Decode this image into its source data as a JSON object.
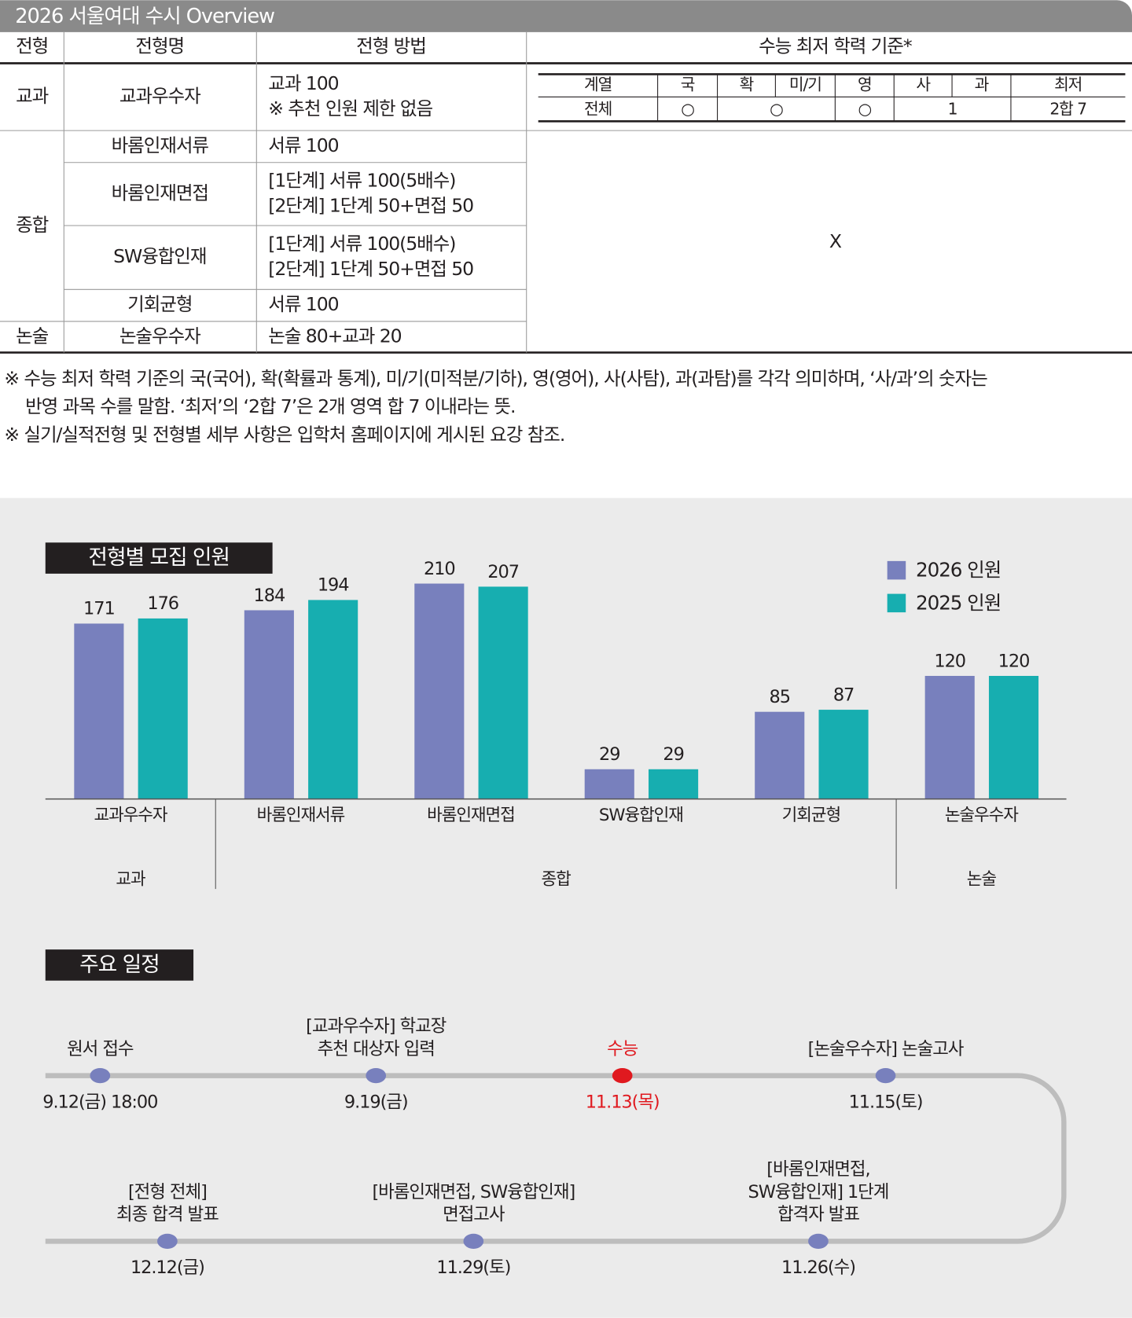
{
  "header": {
    "title": "2026 서울여대 수시 Overview"
  },
  "table": {
    "headers": [
      "전형",
      "전형명",
      "전형 방법",
      "수능 최저 학력 기준*"
    ],
    "groups": [
      {
        "name": "교과",
        "rows": [
          {
            "name": "교과우수자",
            "method": [
              "교과 100",
              "※ 추천 인원 제한 없음"
            ]
          }
        ]
      },
      {
        "name": "종합",
        "rows": [
          {
            "name": "바롬인재서류",
            "method": [
              "서류 100"
            ]
          },
          {
            "name": "바롬인재면접",
            "method": [
              "[1단계] 서류 100(5배수)",
              "[2단계] 1단계 50+면접 50"
            ]
          },
          {
            "name": "SW융합인재",
            "method": [
              "[1단계] 서류 100(5배수)",
              "[2단계] 1단계 50+면접 50"
            ]
          },
          {
            "name": "기회균형",
            "method": [
              "서류 100"
            ]
          }
        ]
      },
      {
        "name": "논술",
        "rows": [
          {
            "name": "논술우수자",
            "method": [
              "논술 80+교과 20"
            ]
          }
        ]
      }
    ],
    "criteria": {
      "headers": [
        "계열",
        "국",
        "확",
        "미/기",
        "영",
        "사",
        "과",
        "최저"
      ],
      "row": [
        "전체",
        "○",
        "○",
        "○",
        "1",
        "2합 7"
      ]
    },
    "no_criteria": "X"
  },
  "notes": [
    [
      "※ 수능 최저 학력 기준의 국(국어), 확(확률과 통계), 미/기(미적분/기하), 영(영어), 사(사탐), 과(과탐)를 각각 의미하며, ‘사/과’의 숫자는",
      "반영 과목 수를 말함. ‘최저’의 ‘2합 7’은 2개 영역 합 7 이내라는 뜻."
    ],
    [
      "※ 실기/실적전형 및 전형별 세부 사항은 입학처 홈페이지에 게시된 요강 참조."
    ]
  ],
  "chart_data": {
    "type": "bar",
    "title": "전형별 모집 인원",
    "categories": [
      "교과우수자",
      "바롬인재서류",
      "바롬인재면접",
      "SW융합인재",
      "기회균형",
      "논술우수자"
    ],
    "groups": [
      {
        "name": "교과",
        "count": 1
      },
      {
        "name": "종합",
        "count": 4
      },
      {
        "name": "논술",
        "count": 1
      }
    ],
    "series": [
      {
        "name": "2026 인원",
        "color": "#7880bd",
        "values": [
          171,
          184,
          210,
          29,
          85,
          120
        ]
      },
      {
        "name": "2025 인원",
        "color": "#17aeb0",
        "values": [
          176,
          194,
          207,
          29,
          87,
          120
        ]
      }
    ],
    "ylim": [
      0,
      250
    ],
    "legend": "top-right"
  },
  "schedule": {
    "title": "주요 일정",
    "highlight_color": "#e0191f",
    "events": [
      {
        "label": [
          "원서 접수"
        ],
        "date": "9.12(금) 18:00"
      },
      {
        "label": [
          "[교과우수자] 학교장",
          "추천 대상자 입력"
        ],
        "date": "9.19(금)"
      },
      {
        "label": [
          "수능"
        ],
        "date": "11.13(목)",
        "highlight": true
      },
      {
        "label": [
          "[논술우수자] 논술고사"
        ],
        "date": "11.15(토)"
      },
      {
        "label": [
          "[바롬인재면접,",
          "SW융합인재] 1단계",
          "합격자 발표"
        ],
        "date": "11.26(수)"
      },
      {
        "label": [
          "[바롬인재면접, SW융합인재]",
          "면접고사"
        ],
        "date": "11.29(토)"
      },
      {
        "label": [
          "[전형 전체]",
          "최종 합격 발표"
        ],
        "date": "12.12(금)"
      }
    ]
  }
}
